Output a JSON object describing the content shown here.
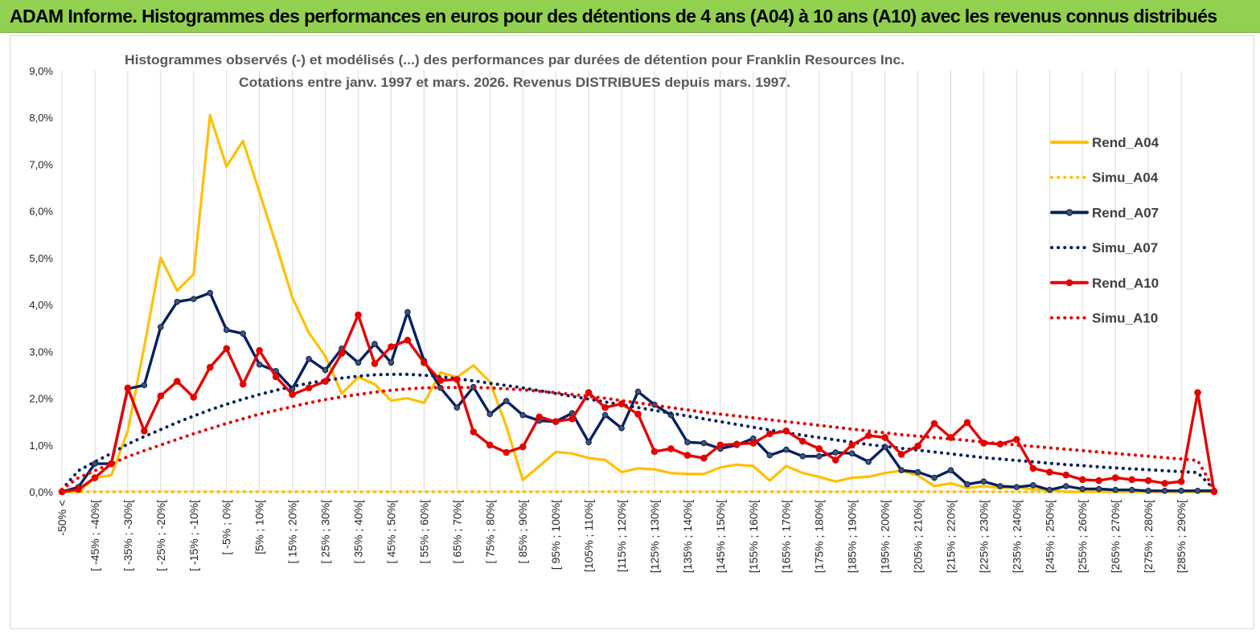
{
  "banner": {
    "title": "ADAM Informe. Histogrammes des performances en euros pour des détentions de 4 ans (A04) à 10 ans (A10) avec les revenus connus distribués"
  },
  "chart_data": {
    "type": "line",
    "title_line1": "Histogrammes observés (-) et modélisés (...)  des performances par durées de détention pour Franklin Resources Inc.",
    "title_line2": "Cotations entre janv. 1997 et mars. 2026. Revenus DISTRIBUES depuis mars. 1997.",
    "y_ticks": [
      "0,0%",
      "1,0%",
      "2,0%",
      "3,0%",
      "4,0%",
      "5,0%",
      "6,0%",
      "7,0%",
      "8,0%",
      "9,0%"
    ],
    "ylim": [
      0,
      9
    ],
    "x_labels": [
      "-50% <",
      "[ -45% ; -40%[",
      "[ -35% ; -30%[",
      "[ -25% ; -20%[",
      "[ -15% ; -10%[",
      "[ -5% ; 0%[",
      "[5% ; 10%[",
      "[ 15% ; 20%[",
      "[ 25% ; 30%[",
      "[ 35% ; 40%[",
      "[ 45% ; 50%[",
      "[ 55% ; 60%[",
      "[ 65% ; 70%[",
      "[ 75% ; 80%[",
      "[ 85% ; 90%[",
      "[ 95% ; 100%[",
      "[105% ; 110%[",
      "[115% ; 120%[",
      "[125% ; 130%[",
      "[135% ; 140%[",
      "[145% ; 150%[",
      "[155% ; 160%[",
      "[165% ; 170%[",
      "[175% ; 180%[",
      "[185% ; 190%[",
      "[195% ; 200%[",
      "[205% ; 210%[",
      "[215% ; 220%[",
      "[225% ; 230%[",
      "[235% ; 240%[",
      "[245% ; 250%[",
      "[255% ; 260%[",
      "[265% ; 270%[",
      "[275% ; 280%[",
      "[285% ; 290%["
    ],
    "n_points": 71,
    "series": [
      {
        "name": "Rend_A04",
        "color": "#ffc000",
        "style": "solid",
        "markers": false,
        "values": [
          0,
          0,
          0.3,
          0.35,
          1.3,
          3.1,
          5.0,
          4.3,
          4.65,
          8.05,
          6.95,
          7.5,
          6.4,
          5.3,
          4.15,
          3.4,
          2.9,
          2.1,
          2.45,
          2.3,
          1.95,
          2.0,
          1.9,
          2.55,
          2.45,
          2.7,
          2.35,
          1.4,
          0.25,
          0.55,
          0.85,
          0.82,
          0.72,
          0.68,
          0.42,
          0.5,
          0.48,
          0.4,
          0.38,
          0.38,
          0.52,
          0.58,
          0.55,
          0.24,
          0.55,
          0.4,
          0.32,
          0.22,
          0.3,
          0.32,
          0.4,
          0.45,
          0.35,
          0.12,
          0.18,
          0.08,
          0.12,
          0.08,
          0.1,
          0.05,
          0.05,
          0.0,
          0,
          0,
          0,
          0,
          0,
          0,
          0,
          0,
          0
        ]
      },
      {
        "name": "Simu_A04",
        "color": "#ffc000",
        "style": "dotted",
        "markers": false,
        "values": [
          0,
          0,
          0,
          0,
          0,
          0,
          0,
          0,
          0,
          0,
          0,
          0,
          0,
          0,
          0,
          0,
          0,
          0,
          0,
          0,
          0,
          0,
          0,
          0,
          0,
          0,
          0,
          0,
          0,
          0,
          0,
          0,
          0,
          0,
          0,
          0,
          0,
          0,
          0,
          0,
          0,
          0,
          0,
          0,
          0,
          0,
          0,
          0,
          0,
          0,
          0,
          0,
          0,
          0,
          0,
          0,
          0,
          0,
          0,
          0,
          0,
          0,
          0,
          0,
          0,
          0,
          0,
          0,
          0,
          0,
          0
        ]
      },
      {
        "name": "Rend_A07",
        "color": "#002060",
        "style": "solid",
        "markers": true,
        "values": [
          0,
          0.1,
          0.6,
          0.6,
          2.2,
          2.28,
          3.52,
          4.06,
          4.12,
          4.25,
          3.46,
          3.38,
          2.72,
          2.58,
          2.2,
          2.84,
          2.6,
          3.06,
          2.76,
          3.16,
          2.76,
          3.84,
          2.8,
          2.22,
          1.8,
          2.24,
          1.66,
          1.94,
          1.64,
          1.52,
          1.5,
          1.68,
          1.06,
          1.64,
          1.36,
          2.14,
          1.86,
          1.64,
          1.06,
          1.04,
          0.92,
          1.0,
          1.14,
          0.78,
          0.9,
          0.76,
          0.76,
          0.84,
          0.82,
          0.64,
          0.96,
          0.46,
          0.42,
          0.3,
          0.46,
          0.16,
          0.22,
          0.12,
          0.1,
          0.14,
          0.04,
          0.12,
          0.06,
          0.06,
          0.04,
          0.04,
          0.02,
          0.02,
          0.02,
          0.02,
          0.02
        ]
      },
      {
        "name": "Simu_A07",
        "color": "#002060",
        "style": "dotted",
        "markers": false,
        "values": [
          0.05,
          0.45,
          0.64,
          0.82,
          1.02,
          1.18,
          1.33,
          1.48,
          1.62,
          1.75,
          1.87,
          1.98,
          2.08,
          2.17,
          2.25,
          2.32,
          2.38,
          2.43,
          2.47,
          2.5,
          2.51,
          2.51,
          2.49,
          2.46,
          2.42,
          2.37,
          2.32,
          2.27,
          2.22,
          2.16,
          2.1,
          2.04,
          1.98,
          1.92,
          1.86,
          1.8,
          1.74,
          1.68,
          1.62,
          1.56,
          1.5,
          1.44,
          1.38,
          1.32,
          1.26,
          1.21,
          1.16,
          1.11,
          1.06,
          1.01,
          0.97,
          0.93,
          0.89,
          0.85,
          0.81,
          0.77,
          0.73,
          0.7,
          0.67,
          0.64,
          0.61,
          0.58,
          0.56,
          0.53,
          0.51,
          0.49,
          0.47,
          0.45,
          0.43,
          0.41,
          0.05
        ]
      },
      {
        "name": "Rend_A10",
        "color": "#e60000",
        "style": "solid",
        "markers": true,
        "values": [
          0,
          0.05,
          0.3,
          0.6,
          2.22,
          1.3,
          2.05,
          2.36,
          2.02,
          2.66,
          3.06,
          2.3,
          3.02,
          2.46,
          2.08,
          2.22,
          2.36,
          2.96,
          3.78,
          2.74,
          3.1,
          3.24,
          2.76,
          2.38,
          2.4,
          1.28,
          1.0,
          0.84,
          0.96,
          1.6,
          1.5,
          1.56,
          2.12,
          1.8,
          1.88,
          1.66,
          0.86,
          0.92,
          0.78,
          0.72,
          1.0,
          1.02,
          1.04,
          1.24,
          1.3,
          1.08,
          0.92,
          0.68,
          1.0,
          1.2,
          1.16,
          0.8,
          0.98,
          1.46,
          1.16,
          1.48,
          1.04,
          1.02,
          1.12,
          0.5,
          0.42,
          0.36,
          0.26,
          0.24,
          0.3,
          0.26,
          0.24,
          0.18,
          0.22,
          2.12,
          0
        ]
      },
      {
        "name": "Simu_A10",
        "color": "#e60000",
        "style": "dotted",
        "markers": false,
        "values": [
          0.05,
          0.3,
          0.45,
          0.6,
          0.75,
          0.88,
          1.0,
          1.12,
          1.24,
          1.35,
          1.46,
          1.56,
          1.66,
          1.74,
          1.82,
          1.9,
          1.97,
          2.03,
          2.08,
          2.13,
          2.17,
          2.2,
          2.22,
          2.23,
          2.23,
          2.23,
          2.22,
          2.2,
          2.18,
          2.15,
          2.12,
          2.08,
          2.04,
          2.0,
          1.95,
          1.9,
          1.85,
          1.8,
          1.75,
          1.7,
          1.66,
          1.62,
          1.58,
          1.54,
          1.5,
          1.46,
          1.42,
          1.38,
          1.34,
          1.3,
          1.26,
          1.22,
          1.19,
          1.16,
          1.13,
          1.1,
          1.06,
          1.03,
          1.0,
          0.97,
          0.94,
          0.91,
          0.88,
          0.85,
          0.82,
          0.79,
          0.76,
          0.73,
          0.7,
          0.67,
          0.05
        ]
      }
    ],
    "legend_position": "right"
  }
}
